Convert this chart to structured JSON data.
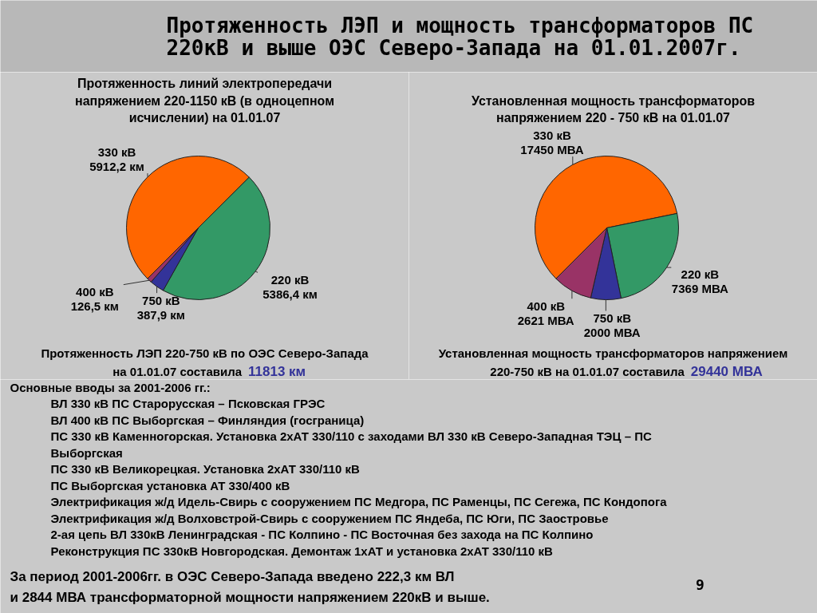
{
  "chart_data": [
    {
      "type": "other",
      "title": "Протяженность ЛЭП и мощность трансформаторов ПС 220кВ и выше ОЭС Северо-Запада на 01.01.2007г."
    },
    {
      "type": "pie",
      "title": "Протяженность линий электропередачи напряжением 220-1150 кВ (в одноцепном исчислении) на 01.01.07",
      "categories": [
        "330 кВ",
        "220 кВ",
        "750 кВ",
        "400 кВ"
      ],
      "values": [
        5912.2,
        5386.4,
        387.9,
        126.5
      ],
      "value_labels": [
        "5912,2 км",
        "5386,4 км",
        "387,9 км",
        "126,5 км"
      ],
      "colors": [
        "#ff6600",
        "#339966",
        "#333399",
        "#993366"
      ],
      "annotations": [
        "Протяженность ЛЭП 220-750 кВ по ОЭС Северо-Запада на 01.01.07 составила 11813 км"
      ]
    },
    {
      "type": "pie",
      "title": "Установленная мощность трансформаторов напряжением 220 - 750 кВ на 01.01.07",
      "categories": [
        "330 кВ",
        "220 кВ",
        "750 кВ",
        "400 кВ"
      ],
      "values": [
        17450,
        7369,
        2000,
        2621
      ],
      "value_labels": [
        "17450 МВА",
        "7369 МВА",
        "2000 МВА",
        "2621 МВА"
      ],
      "colors": [
        "#ff6600",
        "#339966",
        "#333399",
        "#993366"
      ],
      "annotations": [
        "Установленная мощность трансформаторов напряжением 220-750 кВ на 01.01.07 составила 29440 МВА"
      ]
    },
    {
      "type": "other",
      "annotations": [
        "Основные вводы за 2001-2006 гг.:",
        "ВЛ 330 кВ ПС Старорусская – Псковская ГРЭС",
        "ВЛ 400 кВ ПС Выборгская – Финляндия (госграница)",
        "ПС 330 кВ Каменногорская. Установка 2хАТ 330/110 с заходами ВЛ 330 кВ Северо-Западная ТЭЦ – ПС Выборгская",
        "ПС 330 кВ Великорецкая. Установка 2хАТ 330/110 кВ",
        "ПС Выборгская установка АТ 330/400 кВ",
        "Электрификация ж/д Идель-Свирь с сооружением ПС Медгора, ПС Раменцы, ПС Сегежа, ПС Кондопога",
        "Электрификация ж/д Волховстрой-Свирь с сооружением ПС Яндеба, ПС Юги, ПС Заостровье",
        "2-ая цепь ВЛ 330кВ Ленинградская - ПС Колпино - ПС Восточная без захода на ПС Колпино",
        "Реконструкция ПС 330кВ Новгородская. Демонтаж 1хАТ и установка 2хАТ 330/110 кВ",
        "За период 2001-2006гг. в ОЭС Северо-Запада введено 222,3 км ВЛ и 2844 МВА трансформаторной мощности напряжением 220кВ и выше.",
        "9"
      ]
    }
  ]
}
